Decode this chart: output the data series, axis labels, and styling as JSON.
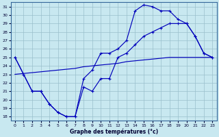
{
  "xlabel": "Graphe des températures (°c)",
  "bg_color": "#c8e8f0",
  "grid_color": "#99bfcc",
  "line_color": "#0000bb",
  "xlim": [
    0,
    23
  ],
  "ylim": [
    18,
    31
  ],
  "xticks": [
    0,
    1,
    2,
    3,
    4,
    5,
    6,
    7,
    8,
    9,
    10,
    11,
    12,
    13,
    14,
    15,
    16,
    17,
    18,
    19,
    20,
    21,
    22,
    23
  ],
  "yticks": [
    18,
    19,
    20,
    21,
    22,
    23,
    24,
    25,
    26,
    27,
    28,
    29,
    30,
    31
  ],
  "curve1_x": [
    0,
    1,
    2,
    3,
    4,
    5,
    6,
    7,
    8,
    9,
    10,
    11,
    12,
    13,
    14,
    15,
    16,
    17,
    18,
    19,
    20,
    21,
    22,
    23
  ],
  "curve1_y": [
    25.0,
    23.0,
    21.0,
    21.0,
    19.5,
    18.5,
    18.0,
    18.0,
    21.5,
    21.0,
    22.5,
    22.5,
    25.0,
    25.5,
    26.5,
    27.5,
    28.0,
    28.5,
    29.0,
    29.0,
    29.0,
    27.5,
    25.5,
    25.0
  ],
  "curve2_x": [
    0,
    1,
    2,
    3,
    4,
    5,
    6,
    7,
    8,
    9,
    10,
    11,
    12,
    13,
    14,
    15,
    16,
    17,
    18,
    19,
    20,
    21,
    22,
    23
  ],
  "curve2_y": [
    25.0,
    23.0,
    21.0,
    21.0,
    19.5,
    18.5,
    18.0,
    18.0,
    22.5,
    23.5,
    25.5,
    25.5,
    26.0,
    27.0,
    30.5,
    31.2,
    31.0,
    30.5,
    30.5,
    29.5,
    29.0,
    27.5,
    25.5,
    25.0
  ],
  "curve3_x": [
    0,
    1,
    2,
    3,
    4,
    5,
    6,
    7,
    8,
    9,
    10,
    11,
    12,
    13,
    14,
    15,
    16,
    17,
    18,
    19,
    20,
    21,
    22,
    23
  ],
  "curve3_y": [
    23.0,
    23.1,
    23.2,
    23.3,
    23.4,
    23.5,
    23.6,
    23.7,
    23.9,
    24.0,
    24.1,
    24.2,
    24.3,
    24.5,
    24.6,
    24.7,
    24.8,
    24.9,
    25.0,
    25.0,
    25.0,
    25.0,
    25.0,
    25.0
  ]
}
